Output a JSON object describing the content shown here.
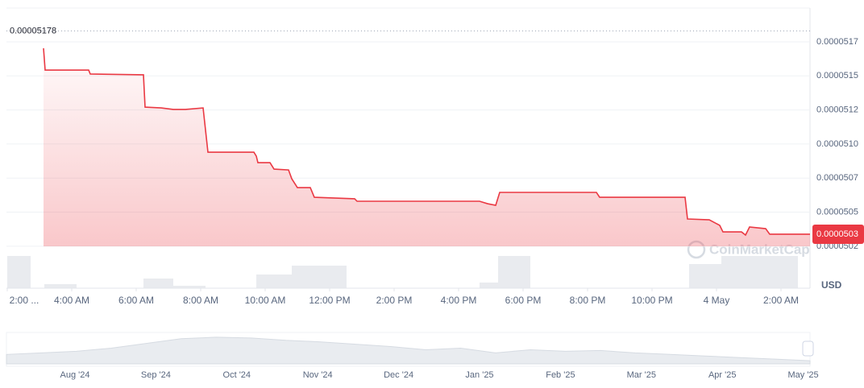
{
  "chart_data": {
    "type": "line",
    "y_label": "USD",
    "watermark": "CoinMarketCap",
    "grid": true,
    "series": [
      {
        "color": "#ea3943",
        "x": [
          3.125,
          3.175,
          4.525,
          4.575,
          6.225,
          6.275,
          6.775,
          7.15,
          7.525,
          8.075,
          8.225,
          9.65,
          9.725,
          9.775,
          10.15,
          10.275,
          10.725,
          10.825,
          11,
          11.4,
          11.525,
          12.775,
          12.85,
          16.65,
          16.9,
          17.15,
          17.275,
          20.275,
          20.375,
          23.025,
          23.1,
          23.775,
          24.1,
          24.2,
          24.775,
          24.9,
          25.025,
          25.525,
          25.65,
          26.9
        ],
        "values": [
          5.1653e-05,
          5.1493e-05,
          5.1493e-05,
          5.1464e-05,
          5.1458e-05,
          5.1221e-05,
          5.1215e-05,
          5.1204e-05,
          5.1204e-05,
          5.1215e-05,
          5.089e-05,
          5.089e-05,
          5.0861e-05,
          5.0813e-05,
          5.0813e-05,
          5.0766e-05,
          5.076e-05,
          5.0695e-05,
          5.063e-05,
          5.063e-05,
          5.0559e-05,
          5.0548e-05,
          5.053e-05,
          5.053e-05,
          5.0512e-05,
          5.05e-05,
          5.0595e-05,
          5.0595e-05,
          5.0559e-05,
          5.0559e-05,
          5.04e-05,
          5.0394e-05,
          5.0353e-05,
          5.0305e-05,
          5.0305e-05,
          5.0282e-05,
          5.0341e-05,
          5.0329e-05,
          5.0288e-05,
          5.0288e-05
        ]
      }
    ],
    "xlim": [
      2,
      26.9
    ],
    "xticks": [
      {
        "value": 2,
        "label": "2:00 ..."
      },
      {
        "value": 4,
        "label": "4:00 AM"
      },
      {
        "value": 6,
        "label": "6:00 AM"
      },
      {
        "value": 8,
        "label": "8:00 AM"
      },
      {
        "value": 10,
        "label": "10:00 AM"
      },
      {
        "value": 12,
        "label": "12:00 PM"
      },
      {
        "value": 14,
        "label": "2:00 PM"
      },
      {
        "value": 16,
        "label": "4:00 PM"
      },
      {
        "value": 18,
        "label": "6:00 PM"
      },
      {
        "value": 20,
        "label": "8:00 PM"
      },
      {
        "value": 22,
        "label": "10:00 PM"
      },
      {
        "value": 24,
        "label": "4 May"
      },
      {
        "value": 26,
        "label": "2:00 AM"
      }
    ],
    "ylim": [
      4.9892e-05,
      5.1948e-05
    ],
    "yticks": [
      {
        "value": 5.17e-05,
        "label": "0.0000517"
      },
      {
        "value": 5.145e-05,
        "label": "0.0000515"
      },
      {
        "value": 5.12e-05,
        "label": "0.0000512"
      },
      {
        "value": 5.095e-05,
        "label": "0.0000510"
      },
      {
        "value": 5.07e-05,
        "label": "0.0000507"
      },
      {
        "value": 5.045e-05,
        "label": "0.0000505"
      },
      {
        "value": 5.02e-05,
        "label": "0.0000502"
      }
    ],
    "high": {
      "value": 5.178e-05,
      "label": "0.00005178"
    },
    "current": {
      "value": 5.0288e-05,
      "label": "0.0000503"
    },
    "volume": {
      "color": "#e3e6eb",
      "vlim": [
        0,
        40
      ],
      "starts": [
        2,
        3.15,
        6.225,
        7.15,
        9.725,
        10.825,
        16.65,
        17.225,
        23.15,
        24.15
      ],
      "ends": [
        2.725,
        4.15,
        7.15,
        8.15,
        10.825,
        12.525,
        17.225,
        18.225,
        24.15,
        26.525
      ],
      "values": [
        40,
        5,
        12,
        3,
        17,
        28,
        7,
        40,
        30,
        40
      ]
    },
    "navigator": {
      "labels": [
        "Aug '24",
        "Sep '24",
        "Oct '24",
        "Nov '24",
        "Dec '24",
        "Jan '25",
        "Feb '25",
        "Mar '25",
        "Apr '25",
        "May '25"
      ],
      "ylim": [
        0,
        40
      ],
      "values": [
        12,
        14,
        16,
        20,
        26,
        32,
        34,
        33,
        30,
        28,
        25,
        22,
        18,
        20,
        14,
        18,
        16,
        17,
        14,
        12,
        10,
        8,
        6,
        4
      ]
    }
  }
}
